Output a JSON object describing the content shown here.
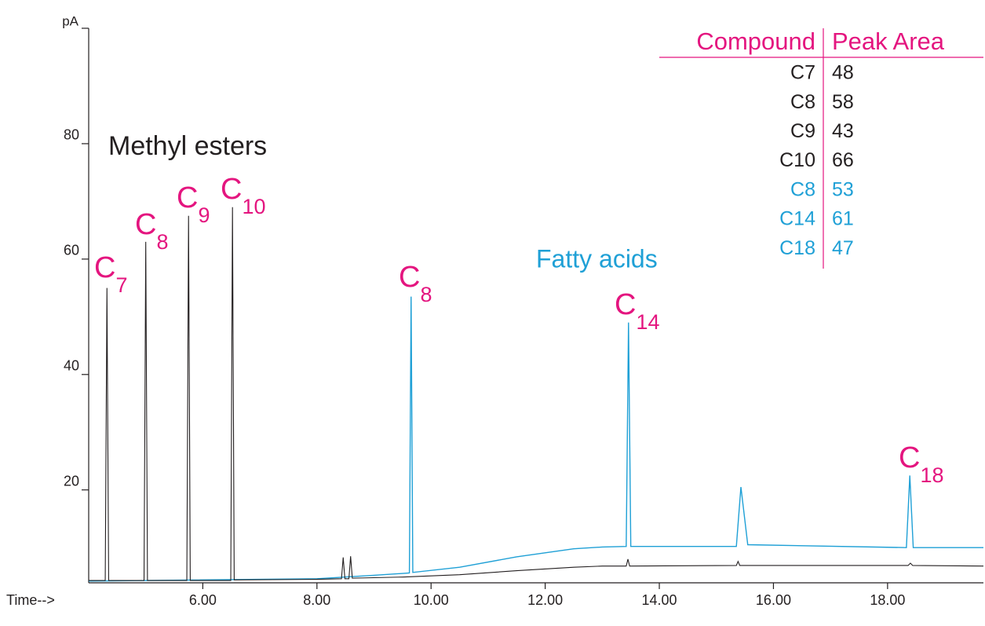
{
  "chart_data": {
    "type": "line",
    "xlabel": "Time-->",
    "ylabel": "pA",
    "xlim": [
      4.0,
      19.68
    ],
    "ylim": [
      3.9,
      100
    ],
    "xticks": [
      {
        "value": 6,
        "label": "6.00"
      },
      {
        "value": 8,
        "label": "8.00"
      },
      {
        "value": 10,
        "label": "10.00"
      },
      {
        "value": 12,
        "label": "12.00"
      },
      {
        "value": 14,
        "label": "14.00"
      },
      {
        "value": 16,
        "label": "16.00"
      },
      {
        "value": 18,
        "label": "18.00"
      }
    ],
    "yticks": [
      20,
      40,
      60,
      80
    ],
    "series": [
      {
        "name": "Methyl esters",
        "color": "#231f20",
        "x": [
          4.0,
          4.29,
          4.32,
          4.35,
          4.97,
          5.0,
          5.03,
          5.72,
          5.75,
          5.78,
          6.49,
          6.52,
          6.55,
          8.0,
          8.43,
          8.46,
          8.49,
          8.56,
          8.59,
          8.62,
          9.5,
          10.5,
          11.5,
          12.5,
          13.0,
          13.42,
          13.45,
          13.48,
          15.35,
          15.38,
          15.41,
          18.36,
          18.4,
          18.44,
          19.68
        ],
        "values": [
          4.3,
          4.3,
          55,
          4.3,
          4.3,
          63,
          4.3,
          4.3,
          67.5,
          4.3,
          4.3,
          69,
          4.4,
          4.5,
          4.6,
          8.3,
          4.6,
          4.6,
          8.5,
          4.7,
          4.9,
          5.3,
          6.0,
          6.6,
          6.8,
          6.8,
          8.0,
          6.8,
          6.9,
          7.6,
          6.9,
          6.9,
          7.3,
          6.9,
          6.8
        ]
      },
      {
        "name": "Fatty acids",
        "color": "#1fa0d6",
        "x": [
          4.0,
          8.0,
          9.0,
          9.62,
          9.65,
          9.68,
          10.5,
          11.5,
          12.5,
          13.0,
          13.42,
          13.46,
          13.5,
          15.35,
          15.43,
          15.55,
          18.33,
          18.39,
          18.45,
          19.68
        ],
        "values": [
          4.2,
          4.6,
          5.2,
          5.6,
          53.5,
          5.7,
          6.6,
          8.4,
          9.8,
          10.1,
          10.2,
          49,
          10.2,
          10.2,
          20.5,
          10.5,
          10.0,
          22.5,
          10.0,
          10.0
        ]
      }
    ],
    "peak_label_color": "#e4157f",
    "peak_labels": [
      {
        "text": "C",
        "subscript": "7"
      },
      {
        "text": "C",
        "subscript": "8"
      },
      {
        "text": "C",
        "subscript": "9"
      },
      {
        "text": "C",
        "subscript": "10"
      },
      {
        "text": "C",
        "subscript": "8"
      },
      {
        "text": "C",
        "subscript": "14"
      },
      {
        "text": "C",
        "subscript": "18"
      }
    ]
  },
  "table": {
    "header": [
      "Compound",
      "Peak Area"
    ],
    "header_color": "#e4157f",
    "rows": [
      {
        "compound": "C7",
        "area": 48,
        "color": "#231f20"
      },
      {
        "compound": "C8",
        "area": 58,
        "color": "#231f20"
      },
      {
        "compound": "C9",
        "area": 43,
        "color": "#231f20"
      },
      {
        "compound": "C10",
        "area": 66,
        "color": "#231f20"
      },
      {
        "compound": "C8",
        "area": 53,
        "color": "#1fa0d6"
      },
      {
        "compound": "C14",
        "area": 61,
        "color": "#1fa0d6"
      },
      {
        "compound": "C18",
        "area": 47,
        "color": "#1fa0d6"
      }
    ]
  }
}
